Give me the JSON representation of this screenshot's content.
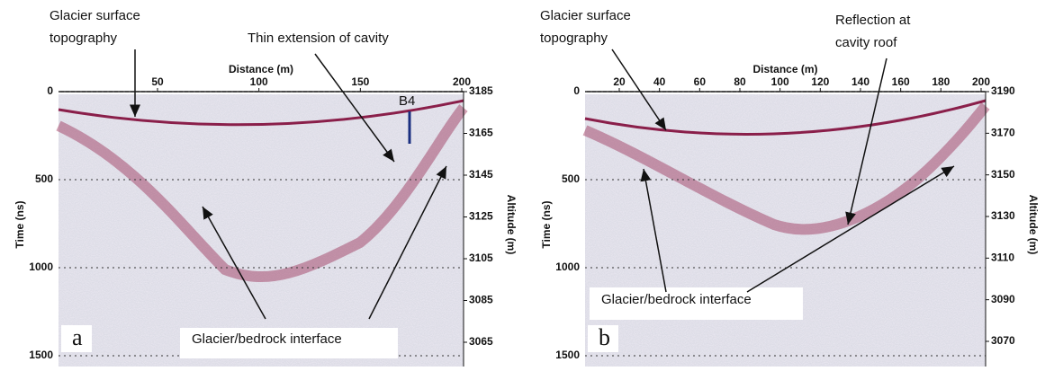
{
  "panels": [
    {
      "label": "a",
      "x_axis_title": "Distance (m)",
      "y_axis_title": "Time (ns)",
      "y2_axis_title": "Altitude (m)",
      "x_ticks": [
        50,
        100,
        150,
        200
      ],
      "y_ticks": [
        0,
        500,
        1000,
        1500
      ],
      "y2_ticks": [
        3185,
        3165,
        3145,
        3125,
        3105,
        3085,
        3065
      ],
      "annotations": {
        "surface": [
          "Glacier surface",
          "topography"
        ],
        "cavity": [
          "Thin extension of cavity"
        ],
        "borehole": [
          "B4"
        ],
        "interface": [
          "Glacier/bedrock interface"
        ]
      }
    },
    {
      "label": "b",
      "x_axis_title": "Distance (m)",
      "y_axis_title": "Time (ns)",
      "y2_axis_title": "Altitude (m)",
      "x_ticks": [
        20,
        40,
        60,
        80,
        100,
        120,
        140,
        160,
        180,
        200
      ],
      "y_ticks": [
        0,
        500,
        1000,
        1500
      ],
      "y2_ticks": [
        3190,
        3170,
        3150,
        3130,
        3110,
        3090,
        3070
      ],
      "annotations": {
        "surface": [
          "Glacier surface",
          "topography"
        ],
        "roof": [
          "Reflection at",
          "cavity roof"
        ],
        "interface": [
          "Glacier/bedrock interface"
        ]
      }
    }
  ]
}
